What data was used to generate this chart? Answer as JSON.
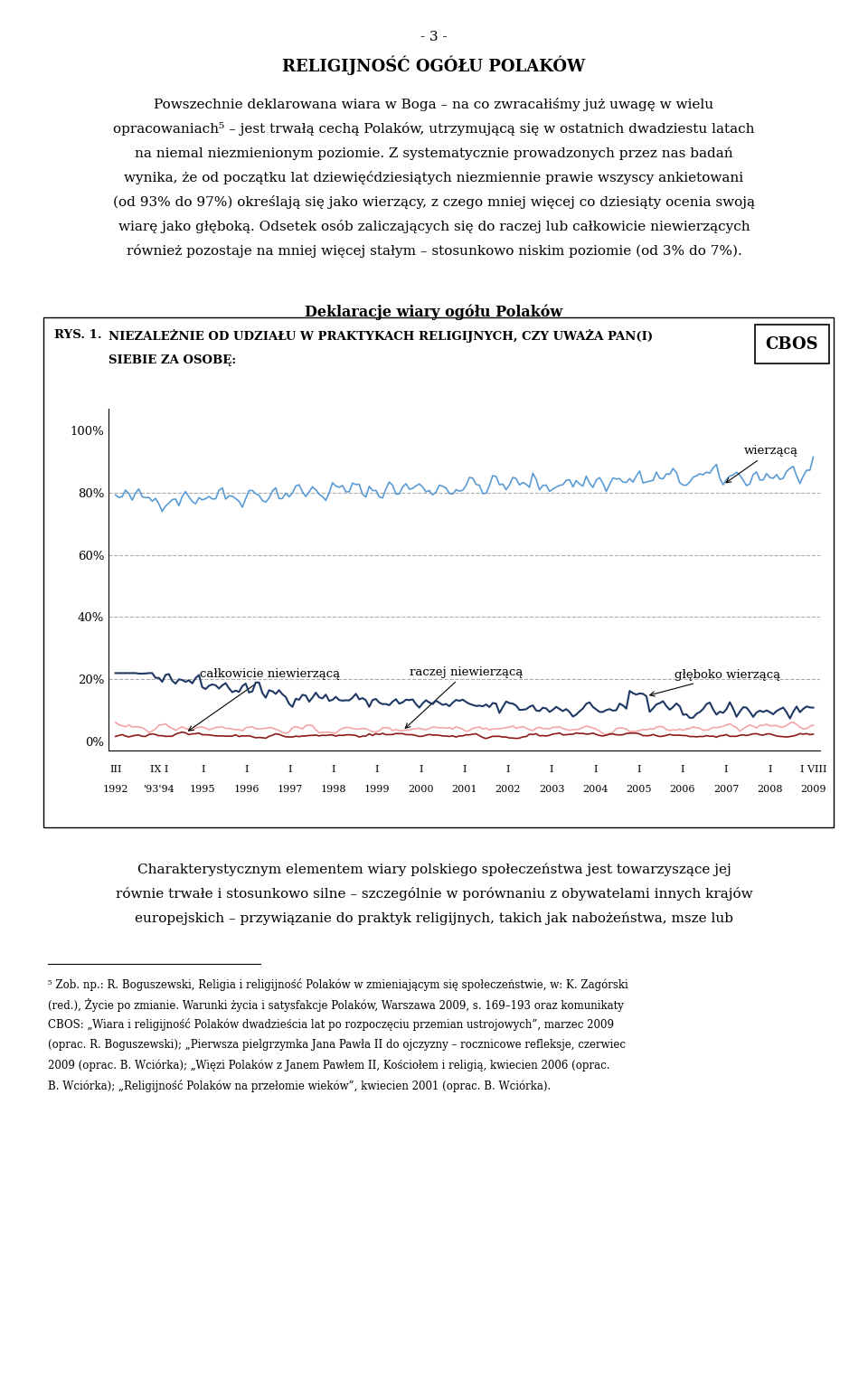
{
  "page_number": "- 3 -",
  "title": "RELIGIJNOŚĆ OGÓŁU POLAKÓW",
  "para1_lines": [
    "Powszechnie deklarowana wiara w Boga – na co zwracałiśmy już uwagę w wielu",
    "opracowaniach⁵ – jest trwałą cechą Polaków, utrzymującą się w ostatnich dwadziestu latach",
    "na niemal niezmienionym poziomie. Z systematycznie prowadzonych przez nas badań",
    "wynika, że od początku lat dziewięćdziesiątych niezmiennie prawie wszyscy ankietowani",
    "(od 93% do 97%) określają się jako wierzący, z czego mniej więcej co dziesiąty ocenia swoją",
    "wiarę jako głęboką. Odsetek osób zaliczających się do raczej lub całkowicie niewierzących",
    "również pozostaje na mniej więcej stałym – stosunkowo niskim poziomie (od 3% do 7%)."
  ],
  "chart_title": "Deklaracje wiary ogółu Polaków",
  "cbos_label": "CBOS",
  "rys_label": "RYS. 1.",
  "rys_line1": "NIEZALEŻNIE OD UDZIAŁU W PRAKTYKACH RELIGIJNYCH, CZY UWAŻA PAN(I)",
  "rys_line2": "SIEBIE ZA OSOBĘ:",
  "para2_lines": [
    "Charakterystycznym elementem wiary polskiego społeczeństwa jest towarzyszące jej",
    "równie trwałe i stosunkowo silne – szczególnie w porównaniu z obywatelami innych krajów",
    "europejskich – przywiązanie do praktyk religijnych, takich jak nabożeństwa, msze lub"
  ],
  "footnote_lines": [
    "⁵ Zob. np.: R. Boguszewski, Religia i religijność Polaków w zmieniającym się społeczeństwie, w: K. Zagórski",
    "(red.), Życie po zmianie. Warunki życia i satysfakcje Polaków, Warszawa 2009, s. 169–193 oraz komunikaty",
    "CBOS: „Wiara i religijność Polaków dwadzieścia lat po rozpoczęciu przemian ustrojowych”, marzec 2009",
    "(oprac. R. Boguszewski); „Pierwsza pielgrzymka Jana Pawła II do ojczyzny – rocznicowe refleksje, czerwiec",
    "2009 (oprac. B. Wciórka); „Więzi Polaków z Janem Pawłem II, Kościołem i religią, kwiecien 2006 (oprac.",
    "B. Wciórka); „Religijność Polaków na przełomie wieków”, kwiecien 2001 (oprac. B. Wciórka)."
  ],
  "wierzaca_color": "#5B9BD5",
  "gleboko_color": "#1F3864",
  "raczej_color": "#F4A5A5",
  "calkowicie_color": "#8B1A1A",
  "annotation_wierzaca": "wierzącą",
  "annotation_calkowicie": "całkowicie niewierzącą",
  "annotation_raczej": "raczej niewierzącą",
  "annotation_gleboko": "głęboko wierzącą",
  "background_color": "#ffffff",
  "grid_color": "#aaaaaa",
  "yticks": [
    0,
    20,
    40,
    60,
    80,
    100
  ],
  "ylim": [
    -3,
    107
  ],
  "x_tick_top": [
    "III",
    "IX I",
    "I",
    "I",
    "I",
    "I",
    "I",
    "I",
    "I",
    "I",
    "I",
    "I",
    "I",
    "I",
    "I",
    "I",
    "I VIII"
  ],
  "x_tick_bot": [
    "1992",
    "'93'94",
    "1995",
    "1996",
    "1997",
    "1998",
    "1999",
    "2000",
    "2001",
    "2002",
    "2003",
    "2004",
    "2005",
    "2006",
    "2007",
    "2008",
    "2009"
  ]
}
